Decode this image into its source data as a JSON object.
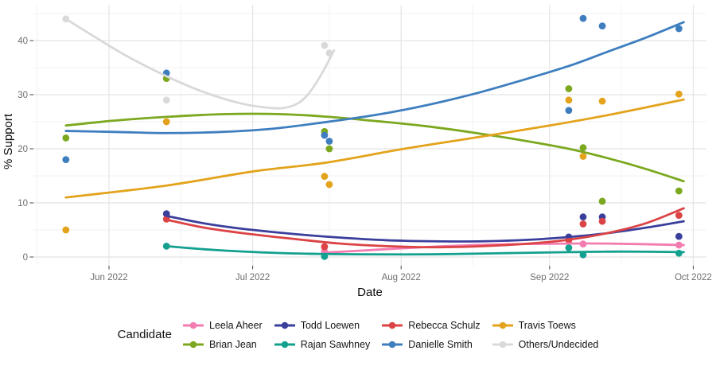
{
  "chart_data": {
    "type": "scatter",
    "title": "",
    "xlabel": "Date",
    "ylabel": "% Support",
    "legend_title": "Candidate",
    "ylim": [
      -1.6,
      46.5
    ],
    "y_ticks": [
      0,
      10,
      20,
      30,
      40
    ],
    "y_minor": [
      5,
      15,
      25,
      35,
      45
    ],
    "x_ticks": [
      {
        "date": "2022-06-01",
        "label": "Jun 2022"
      },
      {
        "date": "2022-07-01",
        "label": "Jul 2022"
      },
      {
        "date": "2022-08-01",
        "label": "Aug 2022"
      },
      {
        "date": "2022-09-01",
        "label": "Sep 2022"
      },
      {
        "date": "2022-10-01",
        "label": "Oct 2022"
      }
    ],
    "x_minor": [
      "2022-05-17",
      "2022-06-16",
      "2022-07-17",
      "2022-08-16",
      "2022-09-16"
    ],
    "grid": true,
    "legend_position": "bottom",
    "series": [
      {
        "name": "Leela Aheer",
        "color": "#F27CB0",
        "points": [
          [
            "2022-07-16",
            1.0
          ],
          [
            "2022-09-08",
            2.4
          ],
          [
            "2022-09-28",
            2.2
          ]
        ],
        "trend": [
          [
            "2022-07-16",
            0.8
          ],
          [
            "2022-07-24",
            1.2
          ],
          [
            "2022-08-01",
            1.6
          ],
          [
            "2022-08-10",
            2.0
          ],
          [
            "2022-08-20",
            2.3
          ],
          [
            "2022-09-01",
            2.45
          ],
          [
            "2022-09-10",
            2.5
          ],
          [
            "2022-09-19",
            2.4
          ],
          [
            "2022-09-29",
            2.2
          ]
        ]
      },
      {
        "name": "Brian Jean",
        "color": "#7CA81F",
        "points": [
          [
            "2022-05-23",
            22
          ],
          [
            "2022-06-13",
            33
          ],
          [
            "2022-07-16",
            23.2
          ],
          [
            "2022-07-17",
            20.0
          ],
          [
            "2022-09-05",
            31.1
          ],
          [
            "2022-09-08",
            20.2
          ],
          [
            "2022-09-12",
            10.3
          ],
          [
            "2022-09-28",
            12.2
          ]
        ],
        "trend": [
          [
            "2022-05-23",
            24.3
          ],
          [
            "2022-06-02",
            25.2
          ],
          [
            "2022-06-13",
            25.9
          ],
          [
            "2022-06-25",
            26.4
          ],
          [
            "2022-07-07",
            26.4
          ],
          [
            "2022-07-17",
            25.9
          ],
          [
            "2022-07-27",
            25.1
          ],
          [
            "2022-08-06",
            24.2
          ],
          [
            "2022-08-16",
            23.0
          ],
          [
            "2022-08-26",
            21.6
          ],
          [
            "2022-09-05",
            20.0
          ],
          [
            "2022-09-13",
            18.3
          ],
          [
            "2022-09-21",
            16.3
          ],
          [
            "2022-09-29",
            14.0
          ]
        ]
      },
      {
        "name": "Todd Loewen",
        "color": "#3B3F9C",
        "points": [
          [
            "2022-06-13",
            8
          ],
          [
            "2022-09-05",
            3.7
          ],
          [
            "2022-09-08",
            7.4
          ],
          [
            "2022-09-12",
            7.4
          ],
          [
            "2022-09-28",
            3.8
          ]
        ],
        "trend": [
          [
            "2022-06-13",
            7.6
          ],
          [
            "2022-06-21",
            6.2
          ],
          [
            "2022-06-29",
            5.2
          ],
          [
            "2022-07-09",
            4.3
          ],
          [
            "2022-07-19",
            3.6
          ],
          [
            "2022-07-29",
            3.1
          ],
          [
            "2022-08-08",
            2.9
          ],
          [
            "2022-08-18",
            2.9
          ],
          [
            "2022-08-28",
            3.2
          ],
          [
            "2022-09-05",
            3.7
          ],
          [
            "2022-09-13",
            4.4
          ],
          [
            "2022-09-21",
            5.4
          ],
          [
            "2022-09-29",
            6.6
          ]
        ]
      },
      {
        "name": "Rajan Sawhney",
        "color": "#13A08F",
        "points": [
          [
            "2022-06-13",
            2
          ],
          [
            "2022-07-16",
            0.1
          ],
          [
            "2022-09-05",
            1.7
          ],
          [
            "2022-09-08",
            0.4
          ],
          [
            "2022-09-28",
            0.7
          ]
        ],
        "trend": [
          [
            "2022-06-13",
            2.0
          ],
          [
            "2022-06-23",
            1.3
          ],
          [
            "2022-07-03",
            0.85
          ],
          [
            "2022-07-13",
            0.6
          ],
          [
            "2022-07-23",
            0.5
          ],
          [
            "2022-08-07",
            0.5
          ],
          [
            "2022-08-22",
            0.7
          ],
          [
            "2022-09-05",
            0.9
          ],
          [
            "2022-09-16",
            1.0
          ],
          [
            "2022-09-29",
            0.9
          ]
        ]
      },
      {
        "name": "Rebecca Schulz",
        "color": "#DB4345",
        "points": [
          [
            "2022-06-13",
            7
          ],
          [
            "2022-07-16",
            1.9
          ],
          [
            "2022-09-05",
            3.1
          ],
          [
            "2022-09-08",
            6.1
          ],
          [
            "2022-09-12",
            6.6
          ],
          [
            "2022-09-28",
            7.7
          ]
        ],
        "trend": [
          [
            "2022-06-13",
            6.9
          ],
          [
            "2022-06-21",
            5.4
          ],
          [
            "2022-06-29",
            4.4
          ],
          [
            "2022-07-09",
            3.4
          ],
          [
            "2022-07-19",
            2.5
          ],
          [
            "2022-07-29",
            2.0
          ],
          [
            "2022-08-08",
            1.8
          ],
          [
            "2022-08-18",
            2.0
          ],
          [
            "2022-08-28",
            2.5
          ],
          [
            "2022-09-05",
            3.2
          ],
          [
            "2022-09-13",
            4.4
          ],
          [
            "2022-09-21",
            6.2
          ],
          [
            "2022-09-29",
            9.0
          ]
        ]
      },
      {
        "name": "Danielle Smith",
        "color": "#3E7EBF",
        "points": [
          [
            "2022-05-23",
            18
          ],
          [
            "2022-06-13",
            34
          ],
          [
            "2022-07-16",
            22.5
          ],
          [
            "2022-07-17",
            21.4
          ],
          [
            "2022-09-05",
            27.1
          ],
          [
            "2022-09-08",
            44.1
          ],
          [
            "2022-09-12",
            42.7
          ],
          [
            "2022-09-28",
            42.2
          ]
        ],
        "trend": [
          [
            "2022-05-23",
            23.3
          ],
          [
            "2022-06-03",
            23.1
          ],
          [
            "2022-06-13",
            22.9
          ],
          [
            "2022-06-24",
            23.1
          ],
          [
            "2022-07-05",
            23.7
          ],
          [
            "2022-07-16",
            24.9
          ],
          [
            "2022-07-27",
            26.3
          ],
          [
            "2022-08-06",
            28.0
          ],
          [
            "2022-08-16",
            30.1
          ],
          [
            "2022-08-26",
            32.6
          ],
          [
            "2022-09-05",
            35.3
          ],
          [
            "2022-09-13",
            37.9
          ],
          [
            "2022-09-21",
            40.5
          ],
          [
            "2022-09-29",
            43.4
          ]
        ]
      },
      {
        "name": "Travis Toews",
        "color": "#E3A31C",
        "points": [
          [
            "2022-05-23",
            5
          ],
          [
            "2022-06-13",
            25
          ],
          [
            "2022-07-16",
            14.9
          ],
          [
            "2022-07-17",
            13.4
          ],
          [
            "2022-09-05",
            29.0
          ],
          [
            "2022-09-08",
            18.6
          ],
          [
            "2022-09-12",
            28.8
          ],
          [
            "2022-09-28",
            30.1
          ]
        ],
        "trend": [
          [
            "2022-05-23",
            11.0
          ],
          [
            "2022-06-13",
            13.2
          ],
          [
            "2022-07-01",
            15.8
          ],
          [
            "2022-07-16",
            17.4
          ],
          [
            "2022-08-01",
            19.9
          ],
          [
            "2022-08-16",
            22.0
          ],
          [
            "2022-09-01",
            24.3
          ],
          [
            "2022-09-13",
            26.2
          ],
          [
            "2022-09-29",
            29.1
          ]
        ]
      },
      {
        "name": "Others/Undecided",
        "color": "#D9D9D9",
        "points": [
          [
            "2022-05-23",
            44
          ],
          [
            "2022-06-13",
            29
          ],
          [
            "2022-07-16",
            39.1
          ],
          [
            "2022-07-17",
            37.7
          ]
        ],
        "trend": [
          [
            "2022-05-23",
            44.0
          ],
          [
            "2022-05-29",
            40.7
          ],
          [
            "2022-06-04",
            37.5
          ],
          [
            "2022-06-10",
            34.7
          ],
          [
            "2022-06-16",
            32.2
          ],
          [
            "2022-06-22",
            30.1
          ],
          [
            "2022-06-28",
            28.5
          ],
          [
            "2022-07-03",
            27.7
          ],
          [
            "2022-07-07",
            27.5
          ],
          [
            "2022-07-10",
            28.2
          ],
          [
            "2022-07-12",
            29.5
          ],
          [
            "2022-07-14",
            31.8
          ],
          [
            "2022-07-16",
            34.8
          ],
          [
            "2022-07-17",
            36.5
          ],
          [
            "2022-07-18",
            38.2
          ]
        ]
      }
    ]
  }
}
